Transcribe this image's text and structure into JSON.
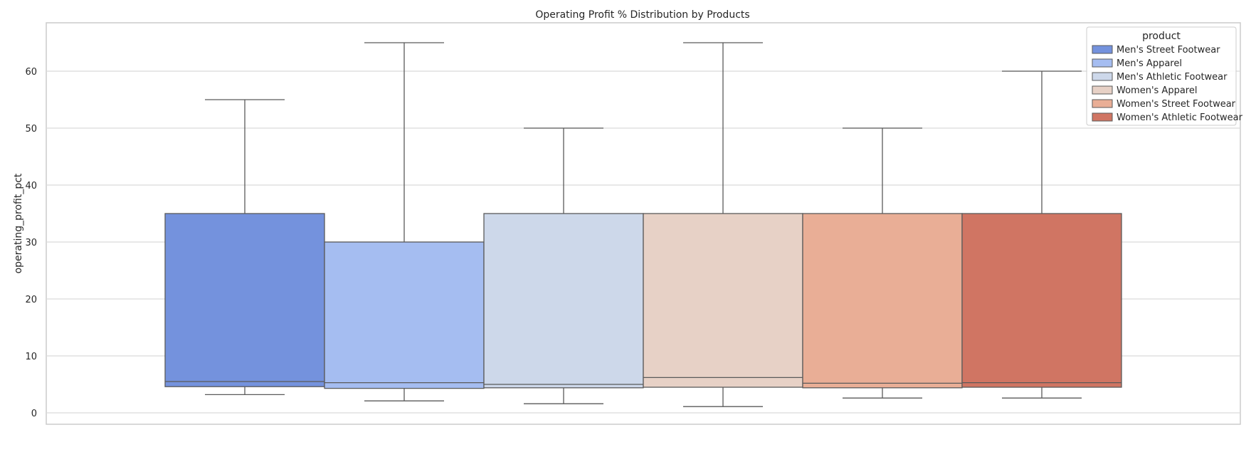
{
  "chart_data": {
    "type": "box",
    "title": "Operating Profit % Distribution by Products",
    "xlabel": "",
    "ylabel": "operating_profit_pct",
    "ylim": [
      -2,
      68.5
    ],
    "yticks": [
      0,
      10,
      20,
      30,
      40,
      50,
      60
    ],
    "grid": true,
    "legend": {
      "title": "product",
      "placement": "top-right"
    },
    "series": [
      {
        "name": "Men's Street Footwear",
        "color": "#7492dd",
        "whisker_low": 3.2,
        "q1": 4.6,
        "median": 5.5,
        "q3": 35,
        "whisker_high": 55
      },
      {
        "name": "Men's Apparel",
        "color": "#a5bdf1",
        "whisker_low": 2.1,
        "q1": 4.3,
        "median": 5.3,
        "q3": 30,
        "whisker_high": 65
      },
      {
        "name": "Men's Athletic Footwear",
        "color": "#cdd8ea",
        "whisker_low": 1.6,
        "q1": 4.4,
        "median": 5.0,
        "q3": 35,
        "whisker_high": 50
      },
      {
        "name": "Women's Apparel",
        "color": "#e7d1c6",
        "whisker_low": 1.1,
        "q1": 4.5,
        "median": 6.2,
        "q3": 35,
        "whisker_high": 65
      },
      {
        "name": "Women's Street Footwear",
        "color": "#e9ae96",
        "whisker_low": 2.6,
        "q1": 4.4,
        "median": 5.2,
        "q3": 35,
        "whisker_high": 50
      },
      {
        "name": "Women's Athletic Footwear",
        "color": "#d07563",
        "whisker_low": 2.6,
        "q1": 4.5,
        "median": 5.3,
        "q3": 35,
        "whisker_high": 60
      }
    ]
  }
}
